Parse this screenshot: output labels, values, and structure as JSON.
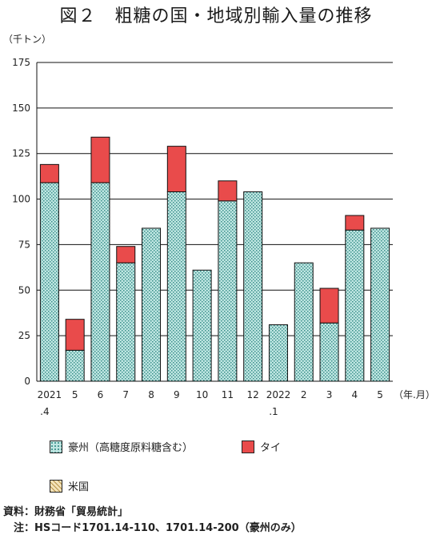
{
  "title": "図２　粗糖の国・地域別輸入量の推移",
  "unit_label": "（千トン）",
  "source": "資料：財務省「貿易統計」",
  "note": "　注：HSコード1701.14-110、1701.14-200（豪州のみ）",
  "colors": {
    "australia": "#bfe6e2",
    "australia_dot": "#3a8f8a",
    "thailand": "#e94b4b",
    "usa": "#f3e2b8",
    "usa_line": "#b8954a"
  },
  "chart_data": {
    "type": "bar",
    "stacked": true,
    "title": "",
    "xlabel": "（年.月）",
    "ylabel": "",
    "ylim": [
      0,
      175
    ],
    "yticks": [
      0,
      25,
      50,
      75,
      100,
      125,
      150,
      175
    ],
    "categories": [
      {
        "line1": "2021",
        "line2": ".4"
      },
      {
        "line1": "5",
        "line2": ""
      },
      {
        "line1": "6",
        "line2": ""
      },
      {
        "line1": "7",
        "line2": ""
      },
      {
        "line1": "8",
        "line2": ""
      },
      {
        "line1": "9",
        "line2": ""
      },
      {
        "line1": "10",
        "line2": ""
      },
      {
        "line1": "11",
        "line2": ""
      },
      {
        "line1": "12",
        "line2": ""
      },
      {
        "line1": "2022",
        "line2": ".1"
      },
      {
        "line1": "2",
        "line2": ""
      },
      {
        "line1": "3",
        "line2": ""
      },
      {
        "line1": "4",
        "line2": ""
      },
      {
        "line1": "5",
        "line2": ""
      }
    ],
    "series": [
      {
        "name": "豪州（高糖度原料糖含む）",
        "key": "australia",
        "values": [
          109,
          17,
          109,
          65,
          84,
          104,
          61,
          99,
          104,
          31,
          65,
          32,
          83,
          84
        ]
      },
      {
        "name": "タイ",
        "key": "thailand",
        "values": [
          10,
          17,
          25,
          9,
          0,
          25,
          0,
          11,
          0,
          0,
          0,
          19,
          8,
          0
        ]
      },
      {
        "name": "米国",
        "key": "usa",
        "values": [
          0,
          0,
          0,
          0,
          0,
          0,
          0,
          0,
          0,
          0,
          0,
          0,
          0,
          0
        ]
      }
    ]
  }
}
